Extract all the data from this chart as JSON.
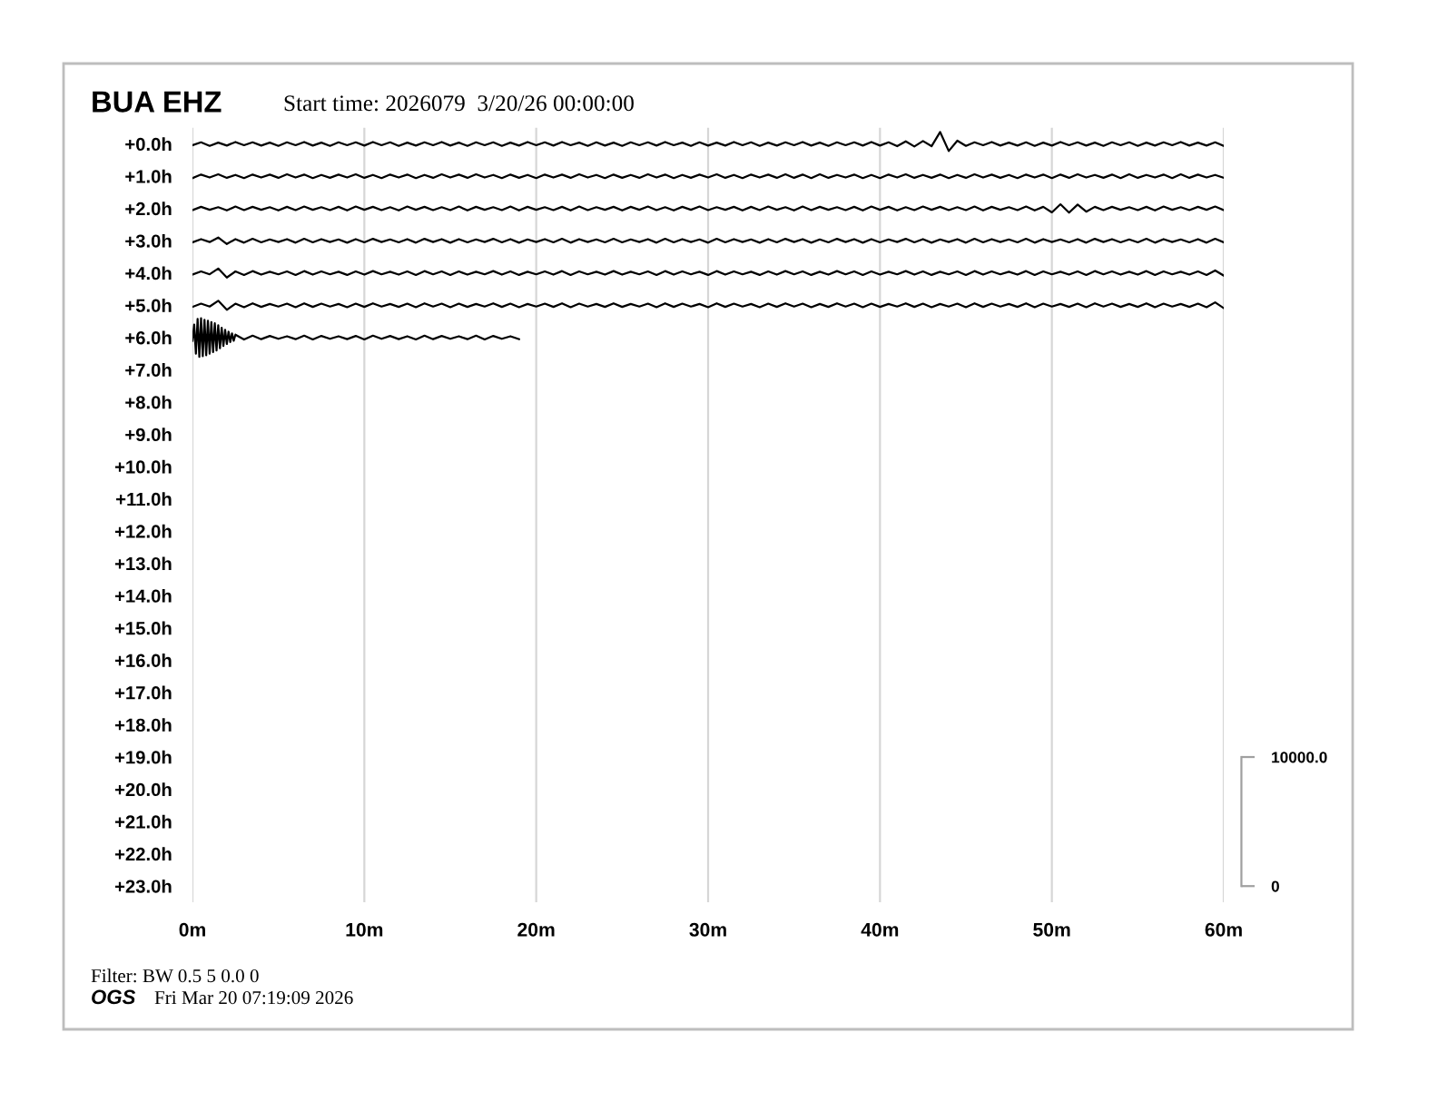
{
  "chart_data": {
    "type": "line",
    "title": "BUA EHZ",
    "subtitle": "Start time: 2026079  3/20/26 00:00:00",
    "annotations": [
      "Filter: BW 0.5 5 0.0 0",
      "OGS",
      "Fri Mar 20 07:19:09 2026"
    ],
    "xlim": [
      0,
      60
    ],
    "xticks": [
      {
        "value": 0,
        "label": "0m"
      },
      {
        "value": 10,
        "label": "10m"
      },
      {
        "value": 20,
        "label": "20m"
      },
      {
        "value": 30,
        "label": "30m"
      },
      {
        "value": 40,
        "label": "40m"
      },
      {
        "value": 50,
        "label": "50m"
      },
      {
        "value": 60,
        "label": "60m"
      }
    ],
    "ylim": [
      23.5,
      -0.5
    ],
    "yticks": [
      {
        "value": 0,
        "label": "+0.0h"
      },
      {
        "value": 1,
        "label": "+1.0h"
      },
      {
        "value": 2,
        "label": "+2.0h"
      },
      {
        "value": 3,
        "label": "+3.0h"
      },
      {
        "value": 4,
        "label": "+4.0h"
      },
      {
        "value": 5,
        "label": "+5.0h"
      },
      {
        "value": 6,
        "label": "+6.0h"
      },
      {
        "value": 7,
        "label": "+7.0h"
      },
      {
        "value": 8,
        "label": "+8.0h"
      },
      {
        "value": 9,
        "label": "+9.0h"
      },
      {
        "value": 10,
        "label": "+10.0h"
      },
      {
        "value": 11,
        "label": "+11.0h"
      },
      {
        "value": 12,
        "label": "+12.0h"
      },
      {
        "value": 13,
        "label": "+13.0h"
      },
      {
        "value": 14,
        "label": "+14.0h"
      },
      {
        "value": 15,
        "label": "+15.0h"
      },
      {
        "value": 16,
        "label": "+16.0h"
      },
      {
        "value": 17,
        "label": "+17.0h"
      },
      {
        "value": 18,
        "label": "+18.0h"
      },
      {
        "value": 19,
        "label": "+19.0h"
      },
      {
        "value": 20,
        "label": "+20.0h"
      },
      {
        "value": 21,
        "label": "+21.0h"
      },
      {
        "value": 22,
        "label": "+22.0h"
      },
      {
        "value": 23,
        "label": "+23.0h"
      }
    ],
    "y2lim": [
      -1250,
      58750
    ],
    "y2ticks": [
      0,
      {
        "value": 10000,
        "label": "10000.0"
      }
    ],
    "grid": "x",
    "x": [
      0,
      0.5,
      1,
      1.5,
      2,
      2.5,
      3,
      3.5,
      4,
      4.5,
      5,
      5.5,
      6,
      6.5,
      7,
      7.5,
      8,
      8.5,
      9,
      9.5,
      10,
      10.5,
      11,
      11.5,
      12,
      12.5,
      13,
      13.5,
      14,
      14.5,
      15,
      15.5,
      16,
      16.5,
      17,
      17.5,
      18,
      18.5,
      19,
      19.5,
      20,
      20.5,
      21,
      21.5,
      22,
      22.5,
      23,
      23.5,
      24,
      24.5,
      25,
      25.5,
      26,
      26.5,
      27,
      27.5,
      28,
      28.5,
      29,
      29.5,
      30,
      30.5,
      31,
      31.5,
      32,
      32.5,
      33,
      33.5,
      34,
      34.5,
      35,
      35.5,
      36,
      36.5,
      37,
      37.5,
      38,
      38.5,
      39,
      39.5,
      40,
      40.5,
      41,
      41.5,
      42,
      42.5,
      43,
      43.5,
      44,
      44.5,
      45,
      45.5,
      46,
      46.5,
      47,
      47.5,
      48,
      48.5,
      49,
      49.5,
      50,
      50.5,
      51,
      51.5,
      52,
      52.5,
      53,
      53.5,
      54,
      54.5,
      55,
      55.5,
      56,
      56.5,
      57,
      57.5,
      58,
      58.5,
      59,
      59.5,
      60
    ],
    "series": [
      {
        "color": "#000000",
        "values": [
          0.04,
          -0.05,
          0.06,
          -0.04,
          0.05,
          -0.06,
          0.04,
          -0.05,
          0.05,
          -0.04,
          0.06,
          -0.05,
          0.04,
          -0.06,
          0.05,
          -0.04,
          0.06,
          -0.05,
          0.04,
          -0.05,
          0.05,
          -0.06,
          0.04,
          -0.05,
          0.06,
          -0.04,
          0.05,
          -0.05,
          0.04,
          -0.06,
          0.05,
          -0.04,
          0.06,
          -0.05,
          0.04,
          -0.05,
          0.06,
          -0.04,
          0.05,
          -0.06,
          0.04,
          -0.05,
          0.05,
          -0.06,
          0.04,
          -0.04,
          0.06,
          -0.05,
          0.05,
          -0.04,
          0.06,
          -0.05,
          0.04,
          -0.05,
          0.05,
          -0.06,
          0.04,
          -0.04,
          0.06,
          -0.05,
          0.05,
          -0.04,
          0.05,
          -0.06,
          0.04,
          -0.05,
          0.06,
          -0.04,
          0.05,
          -0.05,
          0.04,
          -0.06,
          0.05,
          -0.04,
          0.06,
          -0.05,
          0.04,
          -0.05,
          0.05,
          -0.06,
          0.05,
          -0.05,
          0.07,
          -0.08,
          0.08,
          -0.09,
          0.07,
          -0.37,
          0.22,
          -0.1,
          0.06,
          -0.05,
          0.04,
          -0.06,
          0.05,
          -0.04,
          0.05,
          -0.05,
          0.06,
          -0.04,
          0.05,
          -0.06,
          0.04,
          -0.05,
          0.05,
          -0.04,
          0.06,
          -0.05,
          0.04,
          -0.05,
          0.06,
          -0.04,
          0.05,
          -0.05,
          0.04,
          -0.06,
          0.05,
          -0.04,
          0.05,
          -0.05,
          0.06
        ]
      },
      {
        "color": "#000000",
        "values": [
          1.06,
          0.95,
          1.04,
          0.94,
          1.05,
          0.96,
          1.06,
          0.95,
          1.04,
          0.95,
          1.05,
          0.94,
          1.04,
          0.95,
          1.06,
          0.96,
          1.05,
          0.95,
          1.04,
          0.94,
          1.05,
          0.96,
          1.06,
          0.95,
          1.04,
          0.95,
          1.06,
          0.96,
          1.05,
          0.94,
          1.04,
          0.95,
          1.05,
          0.94,
          1.04,
          0.96,
          1.06,
          0.95,
          1.05,
          0.96,
          1.06,
          0.95,
          1.04,
          0.95,
          1.05,
          0.94,
          1.04,
          0.96,
          1.06,
          0.95,
          1.05,
          0.96,
          1.05,
          0.94,
          1.04,
          0.95,
          1.06,
          0.96,
          1.05,
          0.95,
          1.04,
          0.94,
          1.05,
          0.96,
          1.06,
          0.95,
          1.04,
          0.95,
          1.05,
          0.94,
          1.05,
          0.95,
          1.06,
          0.94,
          1.05,
          0.96,
          1.04,
          0.95,
          1.06,
          0.96,
          1.06,
          0.95,
          1.04,
          0.94,
          1.05,
          0.96,
          1.05,
          0.95,
          1.06,
          0.96,
          1.05,
          0.94,
          1.04,
          0.95,
          1.05,
          0.96,
          1.06,
          0.95,
          1.04,
          0.95,
          1.06,
          0.95,
          1.05,
          0.94,
          1.04,
          0.96,
          1.05,
          0.95,
          1.06,
          0.94,
          1.05,
          0.96,
          1.04,
          0.95,
          1.06,
          0.94,
          1.05,
          0.95,
          1.04,
          0.96,
          1.05
        ]
      },
      {
        "color": "#000000",
        "values": [
          2.05,
          1.95,
          2.04,
          1.96,
          2.06,
          1.94,
          2.05,
          1.95,
          2.04,
          1.96,
          2.06,
          1.95,
          2.05,
          1.94,
          2.04,
          1.96,
          2.05,
          1.95,
          2.06,
          1.94,
          2.04,
          1.95,
          2.05,
          1.96,
          2.06,
          1.94,
          2.04,
          1.95,
          2.05,
          1.96,
          2.05,
          1.94,
          2.06,
          1.95,
          2.04,
          1.96,
          2.05,
          1.94,
          2.06,
          1.95,
          2.04,
          1.96,
          2.05,
          1.95,
          2.06,
          1.94,
          2.05,
          1.96,
          2.04,
          1.95,
          2.06,
          1.95,
          2.04,
          1.94,
          2.05,
          1.96,
          2.06,
          1.95,
          2.04,
          1.94,
          2.05,
          1.96,
          2.04,
          1.95,
          2.06,
          1.95,
          2.05,
          1.94,
          2.04,
          1.96,
          2.06,
          1.94,
          2.05,
          1.95,
          2.04,
          1.96,
          2.05,
          1.95,
          2.06,
          1.94,
          2.04,
          1.95,
          2.06,
          1.96,
          2.05,
          1.94,
          2.04,
          1.95,
          2.05,
          1.96,
          2.05,
          1.94,
          2.06,
          1.95,
          2.04,
          1.96,
          2.05,
          1.94,
          2.06,
          1.95,
          2.12,
          1.87,
          2.13,
          1.88,
          2.1,
          1.95,
          2.05,
          1.95,
          2.04,
          1.96,
          2.05,
          1.95,
          2.06,
          1.94,
          2.04,
          1.96,
          2.05,
          1.95,
          2.04,
          1.94,
          2.05
        ]
      },
      {
        "color": "#000000",
        "values": [
          3.05,
          2.95,
          3.04,
          2.9,
          3.1,
          2.95,
          3.06,
          2.94,
          3.05,
          2.96,
          3.04,
          2.95,
          3.06,
          2.94,
          3.05,
          2.95,
          3.04,
          2.96,
          3.06,
          2.95,
          3.05,
          2.94,
          3.04,
          2.96,
          3.05,
          2.95,
          3.06,
          2.94,
          3.04,
          2.95,
          3.06,
          2.95,
          3.05,
          2.96,
          3.04,
          2.94,
          3.05,
          2.95,
          3.06,
          2.96,
          3.04,
          2.95,
          3.05,
          2.94,
          3.06,
          2.95,
          3.04,
          2.96,
          3.05,
          2.94,
          3.05,
          2.96,
          3.04,
          2.95,
          3.06,
          2.94,
          3.05,
          2.95,
          3.04,
          2.96,
          3.06,
          2.94,
          3.05,
          2.95,
          3.04,
          2.96,
          3.06,
          2.95,
          3.05,
          2.94,
          3.04,
          2.95,
          3.06,
          2.96,
          3.05,
          2.94,
          3.04,
          2.95,
          3.06,
          2.95,
          3.05,
          2.96,
          3.04,
          2.94,
          3.05,
          2.95,
          3.06,
          2.96,
          3.04,
          2.95,
          3.06,
          2.94,
          3.05,
          2.95,
          3.04,
          2.96,
          3.05,
          2.94,
          3.06,
          2.95,
          3.04,
          2.96,
          3.05,
          2.95,
          3.06,
          2.94,
          3.04,
          2.95,
          3.05,
          2.96,
          3.05,
          2.94,
          3.06,
          2.95,
          3.04,
          2.96,
          3.05,
          2.95,
          3.06,
          2.94,
          3.05
        ]
      },
      {
        "color": "#000000",
        "values": [
          4.05,
          3.95,
          4.04,
          3.86,
          4.14,
          3.95,
          4.06,
          3.94,
          4.05,
          3.96,
          4.04,
          3.95,
          4.06,
          3.94,
          4.05,
          3.95,
          4.04,
          3.96,
          4.06,
          3.95,
          4.05,
          3.94,
          4.04,
          3.96,
          4.05,
          3.95,
          4.06,
          3.94,
          4.04,
          3.95,
          4.06,
          3.95,
          4.05,
          3.96,
          4.04,
          3.94,
          4.05,
          3.95,
          4.06,
          3.96,
          4.04,
          3.95,
          4.05,
          3.94,
          4.06,
          3.95,
          4.04,
          3.96,
          4.05,
          3.94,
          4.05,
          3.96,
          4.04,
          3.95,
          4.06,
          3.94,
          4.05,
          3.95,
          4.04,
          3.96,
          4.06,
          3.94,
          4.05,
          3.95,
          4.04,
          3.96,
          4.06,
          3.95,
          4.05,
          3.94,
          4.04,
          3.95,
          4.06,
          3.96,
          4.05,
          3.94,
          4.04,
          3.95,
          4.06,
          3.95,
          4.05,
          3.96,
          4.04,
          3.94,
          4.05,
          3.95,
          4.06,
          3.96,
          4.04,
          3.95,
          4.06,
          3.94,
          4.05,
          3.95,
          4.04,
          3.96,
          4.05,
          3.94,
          4.06,
          3.95,
          4.04,
          3.96,
          4.05,
          3.95,
          4.06,
          3.94,
          4.04,
          3.95,
          4.05,
          3.96,
          4.05,
          3.94,
          4.06,
          3.95,
          4.04,
          3.96,
          4.05,
          3.95,
          4.06,
          3.92,
          4.08
        ]
      },
      {
        "color": "#000000",
        "values": [
          5.05,
          4.95,
          5.04,
          4.86,
          5.14,
          4.95,
          5.06,
          4.94,
          5.05,
          4.96,
          5.04,
          4.95,
          5.06,
          4.94,
          5.05,
          4.95,
          5.04,
          4.96,
          5.06,
          4.95,
          5.05,
          4.94,
          5.04,
          4.96,
          5.05,
          4.95,
          5.06,
          4.94,
          5.04,
          4.95,
          5.06,
          4.95,
          5.05,
          4.96,
          5.04,
          4.94,
          5.05,
          4.95,
          5.06,
          4.96,
          5.04,
          4.95,
          5.05,
          4.94,
          5.06,
          4.95,
          5.04,
          4.96,
          5.05,
          4.94,
          5.05,
          4.96,
          5.04,
          4.95,
          5.06,
          4.94,
          5.05,
          4.95,
          5.04,
          4.96,
          5.06,
          4.94,
          5.05,
          4.95,
          5.04,
          4.96,
          5.06,
          4.95,
          5.05,
          4.94,
          5.04,
          4.95,
          5.06,
          4.96,
          5.05,
          4.94,
          5.04,
          4.95,
          5.06,
          4.95,
          5.05,
          4.96,
          5.04,
          4.94,
          5.05,
          4.95,
          5.06,
          4.96,
          5.04,
          4.95,
          5.06,
          4.94,
          5.05,
          4.95,
          5.04,
          4.96,
          5.05,
          4.94,
          5.06,
          4.95,
          5.04,
          4.96,
          5.05,
          4.95,
          5.06,
          4.94,
          5.04,
          4.95,
          5.05,
          4.96,
          5.05,
          4.94,
          5.06,
          4.95,
          5.04,
          4.96,
          5.05,
          4.95,
          5.06,
          4.91,
          5.09
        ]
      },
      {
        "color": "#000000",
        "x": [
          0,
          0.1,
          0.2,
          0.3,
          0.4,
          0.5,
          0.6,
          0.7,
          0.8,
          0.9,
          1,
          1.1,
          1.2,
          1.3,
          1.4,
          1.5,
          1.6,
          1.7,
          1.8,
          1.9,
          2,
          2.1,
          2.2,
          2.3,
          2.4,
          2.5,
          3,
          3.5,
          4,
          4.5,
          5,
          5.5,
          6,
          6.5,
          7,
          7.5,
          8,
          8.5,
          9,
          9.5,
          10,
          10.5,
          11,
          11.5,
          12,
          12.5,
          13,
          13.5,
          14,
          14.5,
          15,
          15.5,
          16,
          16.5,
          17,
          17.5,
          18,
          18.5,
          19
        ],
        "values": [
          6.1,
          5.6,
          6.5,
          5.42,
          6.6,
          5.4,
          6.58,
          5.45,
          6.55,
          5.48,
          6.5,
          5.52,
          6.45,
          5.56,
          6.4,
          5.62,
          6.33,
          5.7,
          6.26,
          5.76,
          6.2,
          5.82,
          6.14,
          5.87,
          6.1,
          5.91,
          6.06,
          5.94,
          6.05,
          5.95,
          6.04,
          5.96,
          6.05,
          5.94,
          6.06,
          5.95,
          6.04,
          5.96,
          6.05,
          5.95,
          6.06,
          5.94,
          6.04,
          5.95,
          6.05,
          5.96,
          6.06,
          5.94,
          6.05,
          5.95,
          6.04,
          5.96,
          6.05,
          5.94,
          6.06,
          5.95,
          6.04,
          5.96,
          6.05
        ]
      }
    ]
  }
}
